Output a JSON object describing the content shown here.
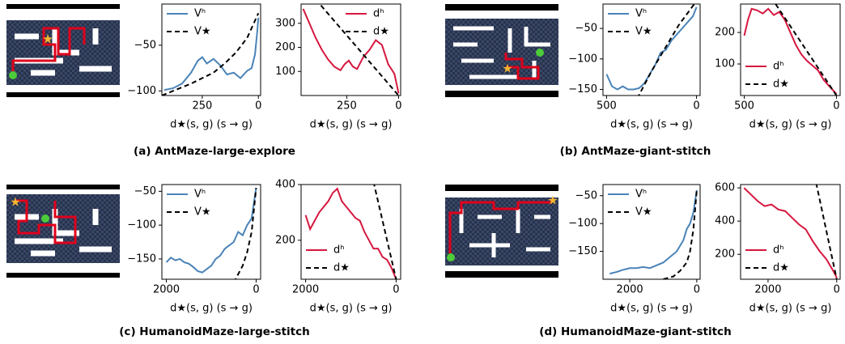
{
  "chart_data": [
    {
      "type": "line",
      "xlabel": "d★(s, g)  (s → g)",
      "xlim": [
        430,
        -10
      ],
      "xticks": [
        250,
        0
      ],
      "ylim": [
        -105,
        -5
      ],
      "yticks": [
        {
          "value": -100,
          "label": "−100"
        },
        {
          "value": -50,
          "label": "−50"
        }
      ],
      "legend": "upper left",
      "series": [
        {
          "name": "Vʰ",
          "color": "#4a83b8",
          "style": "solid",
          "x": [
            420,
            380,
            340,
            300,
            270,
            250,
            230,
            200,
            170,
            140,
            110,
            80,
            50,
            30,
            15,
            5,
            0
          ],
          "values": [
            -99,
            -97,
            -92,
            -80,
            -67,
            -63,
            -70,
            -65,
            -72,
            -82,
            -80,
            -86,
            -78,
            -75,
            -60,
            -35,
            -20
          ]
        },
        {
          "name": "V★",
          "color": "#000000",
          "style": "dashed",
          "x": [
            430,
            350,
            300,
            250,
            200,
            150,
            100,
            50,
            0
          ],
          "values": [
            -105,
            -97,
            -92,
            -86,
            -80,
            -70,
            -58,
            -42,
            -15
          ]
        }
      ]
    },
    {
      "type": "line",
      "xlabel": "d★(s, g)  (s → g)",
      "xlim": [
        470,
        -10
      ],
      "xticks": [
        250,
        0
      ],
      "ylim": [
        0,
        380
      ],
      "yticks": [
        100,
        200,
        300
      ],
      "legend": "upper right",
      "series": [
        {
          "name": "dʰ",
          "color": "#d6173f",
          "style": "solid",
          "x": [
            460,
            430,
            400,
            370,
            340,
            310,
            280,
            260,
            240,
            220,
            200,
            170,
            140,
            110,
            80,
            50,
            20,
            0
          ],
          "values": [
            360,
            300,
            240,
            190,
            150,
            120,
            105,
            130,
            145,
            120,
            110,
            160,
            190,
            230,
            210,
            130,
            90,
            10
          ]
        },
        {
          "name": "d★",
          "color": "#000000",
          "style": "dashed",
          "x": [
            400,
            0
          ],
          "values": [
            400,
            0
          ]
        }
      ]
    },
    {
      "type": "line",
      "xlabel": "d★(s, g)  (s → g)",
      "xlim": [
        520,
        -20
      ],
      "xticks": [
        500,
        0
      ],
      "ylim": [
        -160,
        -10
      ],
      "yticks": [
        {
          "value": -150,
          "label": "−150"
        },
        {
          "value": -100,
          "label": "−100"
        },
        {
          "value": -50,
          "label": "−50"
        }
      ],
      "legend": "upper left",
      "series": [
        {
          "name": "Vʰ",
          "color": "#4a83b8",
          "style": "solid",
          "x": [
            500,
            470,
            440,
            410,
            380,
            350,
            320,
            290,
            260,
            230,
            200,
            170,
            140,
            110,
            80,
            50,
            20,
            0
          ],
          "values": [
            -125,
            -145,
            -150,
            -145,
            -150,
            -150,
            -148,
            -140,
            -125,
            -110,
            -90,
            -85,
            -70,
            -60,
            -50,
            -40,
            -30,
            -15
          ]
        },
        {
          "name": "V★",
          "color": "#000000",
          "style": "dashed",
          "x": [
            330,
            250,
            200,
            150,
            100,
            50,
            0
          ],
          "values": [
            -165,
            -120,
            -95,
            -70,
            -45,
            -25,
            -5
          ]
        }
      ]
    },
    {
      "type": "line",
      "xlabel": "d★(s, g)  (s → g)",
      "xlim": [
        520,
        -20
      ],
      "xticks": [
        500,
        0
      ],
      "ylim": [
        0,
        290
      ],
      "yticks": [
        100,
        200
      ],
      "legend": "lower left",
      "series": [
        {
          "name": "dʰ",
          "color": "#d6173f",
          "style": "solid",
          "x": [
            500,
            480,
            460,
            430,
            400,
            370,
            340,
            310,
            280,
            250,
            220,
            190,
            160,
            130,
            100,
            70,
            40,
            0
          ],
          "values": [
            190,
            240,
            275,
            270,
            260,
            275,
            255,
            265,
            240,
            200,
            160,
            130,
            110,
            95,
            80,
            50,
            30,
            5
          ]
        },
        {
          "name": "d★",
          "color": "#000000",
          "style": "dashed",
          "x": [
            330,
            0
          ],
          "values": [
            290,
            0
          ]
        }
      ]
    },
    {
      "type": "line",
      "xlabel": "d★(s, g)  (s → g)",
      "xlim": [
        2100,
        -100
      ],
      "xticks": [
        2000,
        0
      ],
      "ylim": [
        -180,
        -40
      ],
      "yticks": [
        {
          "value": -150,
          "label": "−150"
        },
        {
          "value": -100,
          "label": "−100"
        },
        {
          "value": -50,
          "label": "−50"
        }
      ],
      "legend": "upper left",
      "series": [
        {
          "name": "Vʰ",
          "color": "#4a83b8",
          "style": "solid",
          "x": [
            2000,
            1900,
            1800,
            1700,
            1600,
            1500,
            1400,
            1300,
            1200,
            1100,
            1000,
            900,
            800,
            700,
            600,
            500,
            400,
            300,
            200,
            100,
            0
          ],
          "values": [
            -155,
            -148,
            -152,
            -150,
            -155,
            -157,
            -162,
            -168,
            -170,
            -165,
            -160,
            -150,
            -145,
            -135,
            -130,
            -125,
            -110,
            -115,
            -100,
            -90,
            -45
          ]
        },
        {
          "name": "V★",
          "color": "#000000",
          "style": "dashed",
          "x": [
            500,
            300,
            200,
            100,
            0
          ],
          "values": [
            -185,
            -160,
            -140,
            -110,
            -45
          ]
        }
      ]
    },
    {
      "type": "line",
      "xlabel": "d★(s, g)  (s → g)",
      "xlim": [
        2100,
        -100
      ],
      "xticks": [
        2000,
        0
      ],
      "ylim": [
        60,
        400
      ],
      "yticks": [
        200,
        400
      ],
      "legend": "lower left",
      "series": [
        {
          "name": "dʰ",
          "color": "#d6173f",
          "style": "solid",
          "x": [
            2000,
            1900,
            1800,
            1700,
            1600,
            1500,
            1400,
            1300,
            1200,
            1100,
            1000,
            900,
            800,
            700,
            600,
            500,
            400,
            300,
            200,
            100,
            0
          ],
          "values": [
            290,
            240,
            270,
            300,
            320,
            340,
            370,
            385,
            340,
            320,
            300,
            280,
            270,
            230,
            200,
            170,
            170,
            140,
            130,
            100,
            60
          ]
        },
        {
          "name": "d★",
          "color": "#000000",
          "style": "dashed",
          "x": [
            500,
            0
          ],
          "values": [
            410,
            60
          ]
        }
      ]
    },
    {
      "type": "line",
      "xlabel": "d★(s, g)  (s → g)",
      "xlim": [
        2800,
        -100
      ],
      "xticks": [
        2000,
        0
      ],
      "ylim": [
        -200,
        -30
      ],
      "yticks": [
        {
          "value": -150,
          "label": "−150"
        },
        {
          "value": -100,
          "label": "−100"
        },
        {
          "value": -50,
          "label": "−50"
        }
      ],
      "legend": "upper left",
      "series": [
        {
          "name": "Vʰ",
          "color": "#4a83b8",
          "style": "solid",
          "x": [
            2600,
            2400,
            2200,
            2000,
            1800,
            1600,
            1400,
            1200,
            1000,
            800,
            600,
            400,
            300,
            200,
            100,
            0
          ],
          "values": [
            -190,
            -187,
            -183,
            -180,
            -180,
            -178,
            -180,
            -175,
            -170,
            -160,
            -150,
            -130,
            -110,
            -100,
            -80,
            -40
          ]
        },
        {
          "name": "V★",
          "color": "#000000",
          "style": "dashed",
          "x": [
            1000,
            700,
            500,
            300,
            200,
            100,
            0
          ],
          "values": [
            -200,
            -195,
            -185,
            -170,
            -150,
            -110,
            -40
          ]
        }
      ]
    },
    {
      "type": "line",
      "xlabel": "d★(s, g)  (s → g)",
      "xlim": [
        2800,
        -100
      ],
      "xticks": [
        2000,
        0
      ],
      "ylim": [
        50,
        620
      ],
      "yticks": [
        200,
        400,
        600
      ],
      "legend": "lower left",
      "series": [
        {
          "name": "dʰ",
          "color": "#d6173f",
          "style": "solid",
          "x": [
            2700,
            2500,
            2300,
            2100,
            1900,
            1700,
            1500,
            1300,
            1100,
            900,
            700,
            500,
            300,
            100,
            0
          ],
          "values": [
            600,
            560,
            520,
            490,
            500,
            470,
            460,
            420,
            380,
            350,
            280,
            220,
            170,
            100,
            60
          ]
        },
        {
          "name": "d★",
          "color": "#000000",
          "style": "dashed",
          "x": [
            600,
            0
          ],
          "values": [
            630,
            50
          ]
        }
      ]
    }
  ],
  "captions": [
    "(a) AntMaze-large-explore",
    "(b) AntMaze-giant-stitch",
    "(c) HumanoidMaze-large-stitch",
    "(d) HumanoidMaze-giant-stitch"
  ]
}
